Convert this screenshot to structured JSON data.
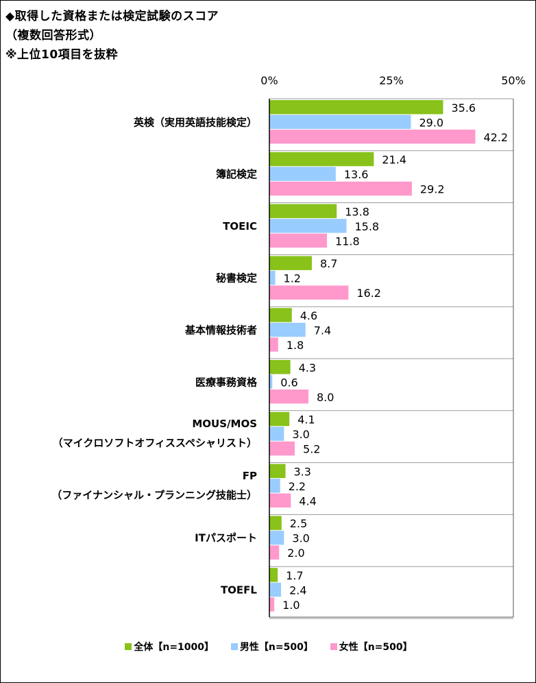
{
  "title": {
    "line1": "◆取得した資格または検定試験のスコア",
    "line2": "（複数回答形式）",
    "line3": "※上位10項目を抜粋"
  },
  "colors": {
    "all": "#88c21a",
    "male": "#99ccff",
    "female": "#ff99cc"
  },
  "chart_data": {
    "type": "bar",
    "orientation": "horizontal",
    "title": "取得した資格または検定試験のスコア",
    "categories": [
      [
        "英検（実用英語技能検定）"
      ],
      [
        "簿記検定"
      ],
      [
        "TOEIC"
      ],
      [
        "秘書検定"
      ],
      [
        "基本情報技術者"
      ],
      [
        "医療事務資格"
      ],
      [
        "MOUS/MOS",
        "（マイクロソフトオフィススペシャリスト）"
      ],
      [
        "FP",
        "（ファイナンシャル・プランニング技能士）"
      ],
      [
        "ITパスポート"
      ],
      [
        "TOEFL"
      ]
    ],
    "series": [
      {
        "name": "全体【n=1000】",
        "key": "all",
        "values": [
          35.6,
          21.4,
          13.8,
          8.7,
          4.6,
          4.3,
          4.1,
          3.3,
          2.5,
          1.7
        ]
      },
      {
        "name": "男性【n=500】",
        "key": "male",
        "values": [
          29.0,
          13.6,
          15.8,
          1.2,
          7.4,
          0.6,
          3.0,
          2.2,
          3.0,
          2.4
        ]
      },
      {
        "name": "女性【n=500】",
        "key": "female",
        "values": [
          42.2,
          29.2,
          11.8,
          16.2,
          1.8,
          8.0,
          5.2,
          4.4,
          2.0,
          1.0
        ]
      }
    ],
    "xlim": [
      0,
      50
    ],
    "xticks": [
      0,
      25,
      50
    ],
    "tick_suffix": "%",
    "grid": true,
    "legend": "bottom"
  }
}
